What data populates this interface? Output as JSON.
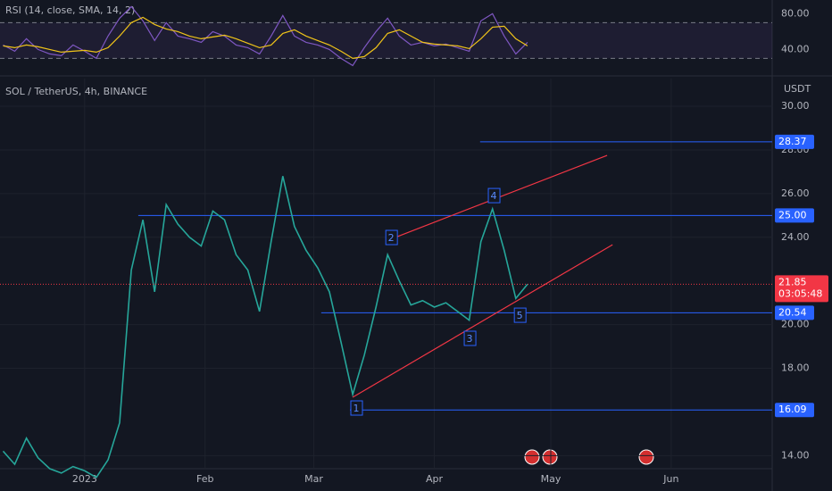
{
  "chart_data": [
    {
      "type": "line",
      "title": "RSI (14, close, SMA, 14, 2)",
      "x": [
        -21,
        -18,
        -15,
        -12,
        -9,
        -6,
        -3,
        0,
        3,
        6,
        9,
        12,
        15,
        18,
        21,
        24,
        27,
        30,
        33,
        36,
        39,
        42,
        45,
        48,
        51,
        54,
        57,
        60,
        63,
        66,
        69,
        72,
        75,
        78,
        81,
        84,
        87,
        90,
        93,
        96,
        99,
        102,
        105,
        108,
        111,
        114
      ],
      "series": [
        {
          "color": "#7e57c2",
          "values": [
            45,
            38,
            52,
            40,
            35,
            33,
            45,
            38,
            30,
            55,
            75,
            88,
            72,
            50,
            70,
            55,
            52,
            48,
            60,
            55,
            45,
            42,
            35,
            55,
            78,
            55,
            48,
            45,
            40,
            30,
            22,
            42,
            60,
            75,
            55,
            45,
            48,
            44,
            46,
            42,
            38,
            72,
            80,
            55,
            35,
            48
          ]
        },
        {
          "color": "#f0c419",
          "values": [
            44,
            42,
            45,
            43,
            40,
            37,
            38,
            39,
            37,
            42,
            55,
            70,
            76,
            68,
            63,
            60,
            55,
            52,
            54,
            56,
            52,
            47,
            42,
            45,
            58,
            62,
            55,
            50,
            45,
            38,
            30,
            32,
            42,
            58,
            62,
            55,
            48,
            46,
            45,
            44,
            41,
            52,
            65,
            66,
            52,
            44
          ]
        }
      ],
      "xlim": [
        -21.8,
        177
      ],
      "ylim": [
        15.4,
        95.4
      ],
      "yticks": [
        {
          "value": 80,
          "label": "80.00"
        },
        {
          "value": 40,
          "label": "40.00"
        }
      ],
      "bands": [
        70,
        30
      ]
    },
    {
      "type": "line",
      "title": "SOL / TetherUS, 4h, BINANCE",
      "unit_label": "USDT",
      "x": [
        -21,
        -18,
        -15,
        -12,
        -9,
        -6,
        -3,
        0,
        3,
        6,
        9,
        12,
        15,
        18,
        21,
        24,
        27,
        30,
        33,
        36,
        39,
        42,
        45,
        48,
        51,
        54,
        57,
        60,
        63,
        66,
        69,
        72,
        75,
        78,
        81,
        84,
        87,
        90,
        93,
        96,
        99,
        102,
        105,
        108,
        111,
        114
      ],
      "series": [
        {
          "color": "#26a69a",
          "values": [
            14.2,
            13.6,
            14.8,
            13.9,
            13.4,
            13.2,
            13.5,
            13.3,
            13.0,
            13.8,
            15.5,
            22.5,
            24.8,
            21.5,
            25.5,
            24.6,
            24.0,
            23.6,
            25.2,
            24.8,
            23.2,
            22.5,
            20.6,
            23.8,
            26.8,
            24.5,
            23.4,
            22.6,
            21.5,
            19.2,
            16.8,
            18.6,
            20.8,
            23.2,
            22.0,
            20.9,
            21.1,
            20.8,
            21.0,
            20.6,
            20.2,
            23.8,
            25.3,
            23.4,
            21.2,
            21.85
          ]
        }
      ],
      "xlim": [
        -21.8,
        177
      ],
      "ylim": [
        13.4,
        31.27
      ],
      "grid": true,
      "xticks": [
        {
          "value": 0,
          "label": "2023"
        },
        {
          "value": 31,
          "label": "Feb"
        },
        {
          "value": 59,
          "label": "Mar"
        },
        {
          "value": 90,
          "label": "Apr"
        },
        {
          "value": 120,
          "label": "May"
        },
        {
          "value": 151,
          "label": "Jun"
        }
      ],
      "yticks": [
        {
          "value": 30,
          "label": "30.00"
        },
        {
          "value": 28,
          "label": "28.00"
        },
        {
          "value": 26,
          "label": "26.00"
        },
        {
          "value": 24,
          "label": "24.00"
        },
        {
          "value": 20,
          "label": "20.00"
        },
        {
          "value": 18,
          "label": "18.00"
        },
        {
          "value": 14,
          "label": "14.00"
        }
      ],
      "levels": [
        {
          "value": 28.37,
          "label": "28.37",
          "start": 101.8
        },
        {
          "value": 25,
          "label": "25.00",
          "start": 13.8
        },
        {
          "value": 20.54,
          "label": "20.54",
          "start": 60.9
        },
        {
          "value": 16.09,
          "label": "16.09",
          "start": 68.3
        }
      ],
      "last_price": {
        "value": 21.85,
        "label": "21.85",
        "countdown": "03:05:48"
      },
      "trendlines": [
        {
          "x": [
            69,
            135.9
          ],
          "y": [
            16.67,
            23.66
          ]
        },
        {
          "x": [
            79.3,
            134.5
          ],
          "y": [
            23.95,
            27.75
          ]
        }
      ],
      "annotations": [
        {
          "text": "1",
          "x": 69.9,
          "y": 16.18
        },
        {
          "text": "2",
          "x": 78.9,
          "y": 23.99
        },
        {
          "text": "3",
          "x": 99.1,
          "y": 19.37
        },
        {
          "text": "4",
          "x": 105.3,
          "y": 25.91
        },
        {
          "text": "5",
          "x": 112,
          "y": 20.43
        }
      ]
    }
  ]
}
